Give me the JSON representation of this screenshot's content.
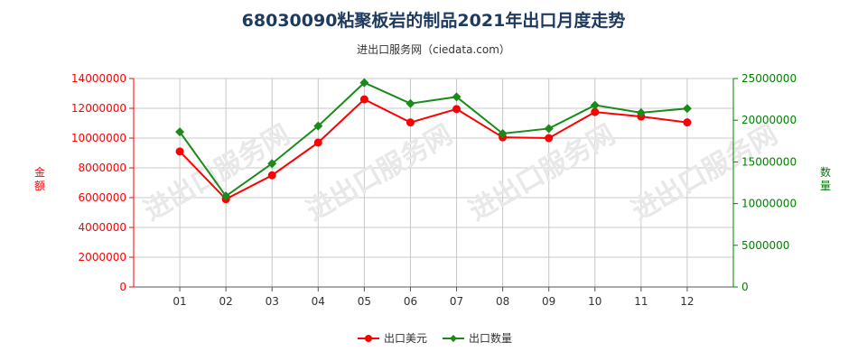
{
  "chart_data": {
    "type": "line",
    "title": "68030090粘聚板岩的制品2021年出口月度走势",
    "subtitle": "进出口服务网（ciedata.com）",
    "categories": [
      "01",
      "02",
      "03",
      "04",
      "05",
      "06",
      "07",
      "08",
      "09",
      "10",
      "11",
      "12"
    ],
    "y_left": {
      "label": "金额",
      "ylim": [
        0,
        14000000
      ],
      "ticks": [
        "0",
        "2000000",
        "4000000",
        "6000000",
        "8000000",
        "10000000",
        "12000000",
        "14000000"
      ],
      "color": "#ff0000"
    },
    "y_right": {
      "label": "数量",
      "ylim": [
        0,
        25000000
      ],
      "ticks": [
        "0",
        "5000000",
        "10000000",
        "15000000",
        "20000000",
        "25000000"
      ],
      "color": "#008000"
    },
    "series": [
      {
        "name": "出口美元",
        "axis": "left",
        "color": "#ff0000",
        "values": [
          9100000,
          5900000,
          7500000,
          9700000,
          12600000,
          11050000,
          11950000,
          10050000,
          10000000,
          11750000,
          11450000,
          11050000
        ]
      },
      {
        "name": "出口数量",
        "axis": "right",
        "color": "#1a8a1a",
        "values": [
          18600000,
          10900000,
          14800000,
          19300000,
          24500000,
          22000000,
          22800000,
          18400000,
          19000000,
          21800000,
          20900000,
          21400000
        ]
      }
    ],
    "grid": true,
    "legend": "bottom-center",
    "watermark": "进出口服务网"
  }
}
